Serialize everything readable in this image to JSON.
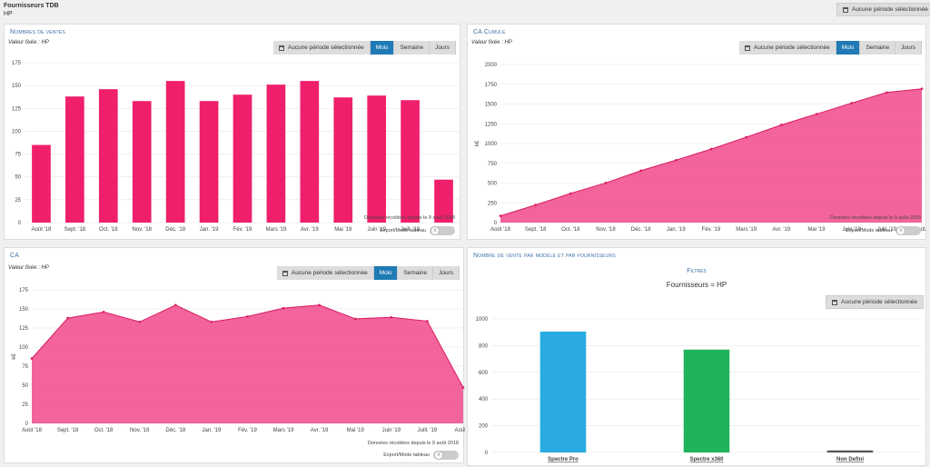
{
  "header": {
    "title": "Fournisseurs TDB",
    "subtitle": "HP",
    "period_button": "Aucune période sélectionnée"
  },
  "colors": {
    "accent": "#f01f6b",
    "area": "#f0498a",
    "active": "#1f7ab5",
    "blue_bar": "#29abe2",
    "green_bar": "#21b35c"
  },
  "common": {
    "fixed_value": "Valeur fixée : HP",
    "period_none": "Aucune période sélectionnée",
    "tab_month": "Mois",
    "tab_week": "Semaine",
    "tab_day": "Jours",
    "footnote": "Données récoltées depuis le 9 août 2018",
    "export_label": "Export/Mode tableau",
    "toggle_text": "X"
  },
  "panels": {
    "sales": {
      "title": "Nombres de ventes"
    },
    "cumul": {
      "title": "CA Cumulé"
    },
    "ca": {
      "title": "CA"
    },
    "model": {
      "title": "Nombre de vente par modèle et par fournisseurs",
      "filters_title": "Filtres",
      "filters_text": "Fournisseurs = HP",
      "period_button": "Aucune période sélectionnée"
    }
  },
  "chart_data": [
    {
      "type": "bar",
      "title": "Nombres de ventes",
      "categories": [
        "Août '18",
        "Sept. '18",
        "Oct. '18",
        "Nov. '18",
        "Déc. '18",
        "Janv. '19",
        "Févr. '19",
        "Mars '19",
        "Avr. '19",
        "Mai '19",
        "Juin '19",
        "Juil. '19",
        "Août '19"
      ],
      "category_labels": [
        "Août '18",
        "Sept. '18",
        "Oct. '18",
        "Nov. '18",
        "Déc. '18",
        "Jan. '19",
        "Fév. '19",
        "Mars '19",
        "Avr. '19",
        "Mai '19",
        "Juin '19",
        "Juill. '19",
        "Août '19"
      ],
      "values": [
        85,
        138,
        146,
        133,
        155,
        133,
        140,
        151,
        155,
        137,
        139,
        134,
        47
      ],
      "ylim": [
        0,
        175
      ],
      "yticks": [
        0,
        25,
        50,
        75,
        100,
        125,
        150,
        175
      ]
    },
    {
      "type": "area",
      "title": "CA Cumulé",
      "ylabel": "k€",
      "categories": [
        "Août '18",
        "Sept. '18",
        "Oct. '18",
        "Nov. '18",
        "Déc. '18",
        "Jan. '19",
        "Fév. '19",
        "Mars '19",
        "Avr. '19",
        "Mai '19",
        "Juin '19",
        "Juill. '19",
        "Août..."
      ],
      "values": [
        85,
        223,
        369,
        502,
        657,
        790,
        930,
        1081,
        1236,
        1373,
        1512,
        1646,
        1693
      ],
      "ylim": [
        0,
        2000
      ],
      "yticks": [
        0,
        250,
        500,
        750,
        1000,
        1250,
        1500,
        1750,
        2000
      ]
    },
    {
      "type": "area",
      "title": "CA",
      "ylabel": "k€",
      "categories": [
        "Août '18",
        "Sept. '18",
        "Oct. '18",
        "Nov. '18",
        "Déc. '18",
        "Jan. '19",
        "Fév. '19",
        "Mars '19",
        "Avr. '19",
        "Mai '19",
        "Juin '19",
        "Juill. '19",
        "Août ..."
      ],
      "values": [
        85,
        138,
        146,
        133,
        155,
        133,
        140,
        151,
        155,
        137,
        139,
        134,
        47
      ],
      "ylim": [
        0,
        175
      ],
      "yticks": [
        0,
        25,
        50,
        75,
        100,
        125,
        150,
        175
      ]
    },
    {
      "type": "bar",
      "title": "Nombre de vente par modèle et par fournisseurs",
      "categories": [
        "Spectre Pro",
        "Spectre x360",
        "Non Defini"
      ],
      "values": [
        905,
        770,
        15
      ],
      "colors": [
        "#29abe2",
        "#21b35c",
        "#555555"
      ],
      "ylim": [
        0,
        1000
      ],
      "yticks": [
        0,
        200,
        400,
        600,
        800,
        1000
      ]
    }
  ]
}
